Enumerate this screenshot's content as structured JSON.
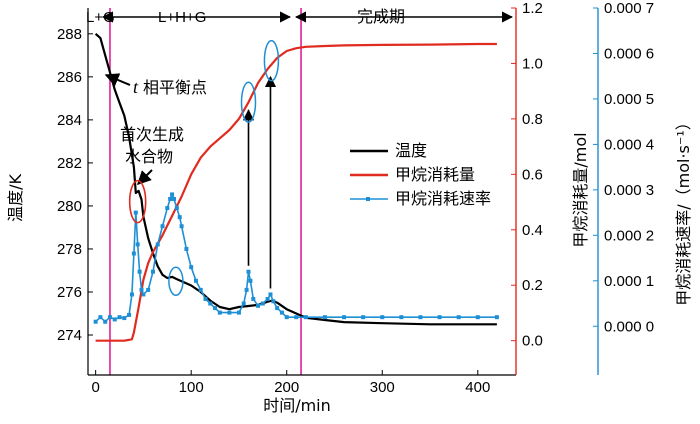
{
  "chart_data": {
    "type": "line",
    "xlabel": "时间/min",
    "y_left_label": "温度/K",
    "y_right1_label": "甲烷消耗量/mol",
    "y_right2_label": "甲烷消耗速率/（mol·s⁻¹）",
    "x_ticks": [
      "0",
      "100",
      "200",
      "300",
      "400"
    ],
    "x_tick_values": [
      0,
      100,
      200,
      300,
      400
    ],
    "xlim": [
      -8,
      440
    ],
    "y_left_ticks": [
      "274",
      "276",
      "278",
      "280",
      "282",
      "284",
      "286",
      "288"
    ],
    "y_left_tick_values": [
      274,
      276,
      278,
      280,
      282,
      284,
      286,
      288
    ],
    "y_left_lim": [
      273.35,
      289.2
    ],
    "y_right1_ticks": [
      "0.0",
      "0.2",
      "0.4",
      "0.6",
      "0.8",
      "1.0",
      "1.2"
    ],
    "y_right1_tick_values": [
      0,
      0.2,
      0.4,
      0.6,
      0.8,
      1.0,
      1.2
    ],
    "y_right1_lim": [
      -0.03,
      1.2
    ],
    "y_right2_ticks": [
      "0.000 0",
      "0.000 1",
      "0.000 2",
      "0.000 3",
      "0.000 4",
      "0.000 5",
      "0.000 6",
      "0.000 7"
    ],
    "y_right2_tick_values": [
      0,
      0.0001,
      0.0002,
      0.0003,
      0.0004,
      0.0005,
      0.0006,
      0.0007
    ],
    "y_right2_lim": [
      -5e-05,
      0.0007
    ],
    "legend": [
      "温度",
      "甲烷消耗量",
      "甲烷消耗速率"
    ],
    "legend_position": "center-right",
    "phase_lines_x": [
      15,
      215
    ],
    "phase_labels": [
      "L+G",
      "L+H+G",
      "完成期"
    ],
    "annotations": {
      "t_label": "t",
      "t_text": "相平衡点",
      "hydrate_text_1": "首次生成",
      "hydrate_text_2": "水合物"
    },
    "colors": {
      "temperature": "#000000",
      "consumption": "#e02b20",
      "rate": "#1e8fd5",
      "phase_line": "#e0209a",
      "circle": "#1e8fd5",
      "circle_red": "#e02b20"
    },
    "series": [
      {
        "name": "温度",
        "axis": "left",
        "x": [
          0,
          5,
          10,
          15,
          20,
          25,
          30,
          35,
          40,
          42,
          45,
          48,
          50,
          55,
          60,
          65,
          70,
          75,
          80,
          85,
          90,
          95,
          100,
          110,
          120,
          130,
          140,
          150,
          160,
          170,
          180,
          185,
          190,
          200,
          210,
          220,
          240,
          260,
          300,
          350,
          400,
          420
        ],
        "y": [
          288.0,
          287.8,
          287.0,
          286.2,
          285.4,
          284.8,
          284.2,
          283.2,
          281.8,
          280.6,
          280.7,
          280.3,
          279.5,
          278.5,
          277.8,
          277.2,
          276.8,
          276.65,
          276.7,
          276.6,
          276.5,
          276.4,
          276.3,
          276.0,
          275.6,
          275.3,
          275.2,
          275.3,
          275.35,
          275.4,
          275.55,
          275.6,
          275.5,
          275.2,
          275.0,
          274.8,
          274.7,
          274.6,
          274.55,
          274.5,
          274.5,
          274.5
        ]
      },
      {
        "name": "甲烷消耗量",
        "axis": "right1",
        "x": [
          0,
          10,
          20,
          30,
          38,
          40,
          45,
          50,
          55,
          60,
          70,
          80,
          90,
          100,
          110,
          120,
          130,
          140,
          150,
          160,
          170,
          180,
          190,
          200,
          210,
          220,
          240,
          260,
          300,
          350,
          400,
          420
        ],
        "y": [
          0.0,
          0.0,
          0.0,
          0.0,
          0.005,
          0.03,
          0.12,
          0.22,
          0.28,
          0.32,
          0.38,
          0.45,
          0.52,
          0.6,
          0.66,
          0.7,
          0.73,
          0.76,
          0.8,
          0.86,
          0.93,
          0.98,
          1.02,
          1.045,
          1.055,
          1.06,
          1.063,
          1.065,
          1.067,
          1.068,
          1.07,
          1.07
        ]
      },
      {
        "name": "甲烷消耗速率",
        "axis": "right2",
        "x": [
          0,
          5,
          10,
          15,
          20,
          25,
          30,
          35,
          38,
          40,
          42,
          44,
          46,
          48,
          50,
          55,
          60,
          65,
          70,
          75,
          78,
          80,
          82,
          85,
          88,
          90,
          95,
          100,
          105,
          110,
          115,
          120,
          125,
          130,
          140,
          150,
          155,
          158,
          160,
          162,
          165,
          170,
          175,
          180,
          183,
          186,
          190,
          195,
          200,
          210,
          220,
          240,
          260,
          280,
          300,
          320,
          340,
          360,
          380,
          400,
          420
        ],
        "y": [
          1e-05,
          2e-05,
          1e-05,
          2e-05,
          1.5e-05,
          2e-05,
          1.8e-05,
          2.5e-05,
          7e-05,
          0.00016,
          0.00025,
          0.00018,
          0.00012,
          8e-05,
          7e-05,
          8e-05,
          0.00012,
          0.00018,
          0.00022,
          0.00026,
          0.00028,
          0.00029,
          0.00028,
          0.00026,
          0.00024,
          0.00022,
          0.00017,
          0.00013,
          0.0001,
          8e-05,
          6e-05,
          5e-05,
          4e-05,
          3e-05,
          3e-05,
          3e-05,
          5e-05,
          8e-05,
          0.00012,
          0.0001,
          6e-05,
          4.5e-05,
          5e-05,
          6e-05,
          7e-05,
          5.5e-05,
          4e-05,
          3e-05,
          2e-05,
          2e-05,
          2e-05,
          2e-05,
          2e-05,
          2e-05,
          2e-05,
          2e-05,
          2e-05,
          2e-05,
          2e-05,
          2e-05,
          2e-05
        ]
      }
    ]
  }
}
